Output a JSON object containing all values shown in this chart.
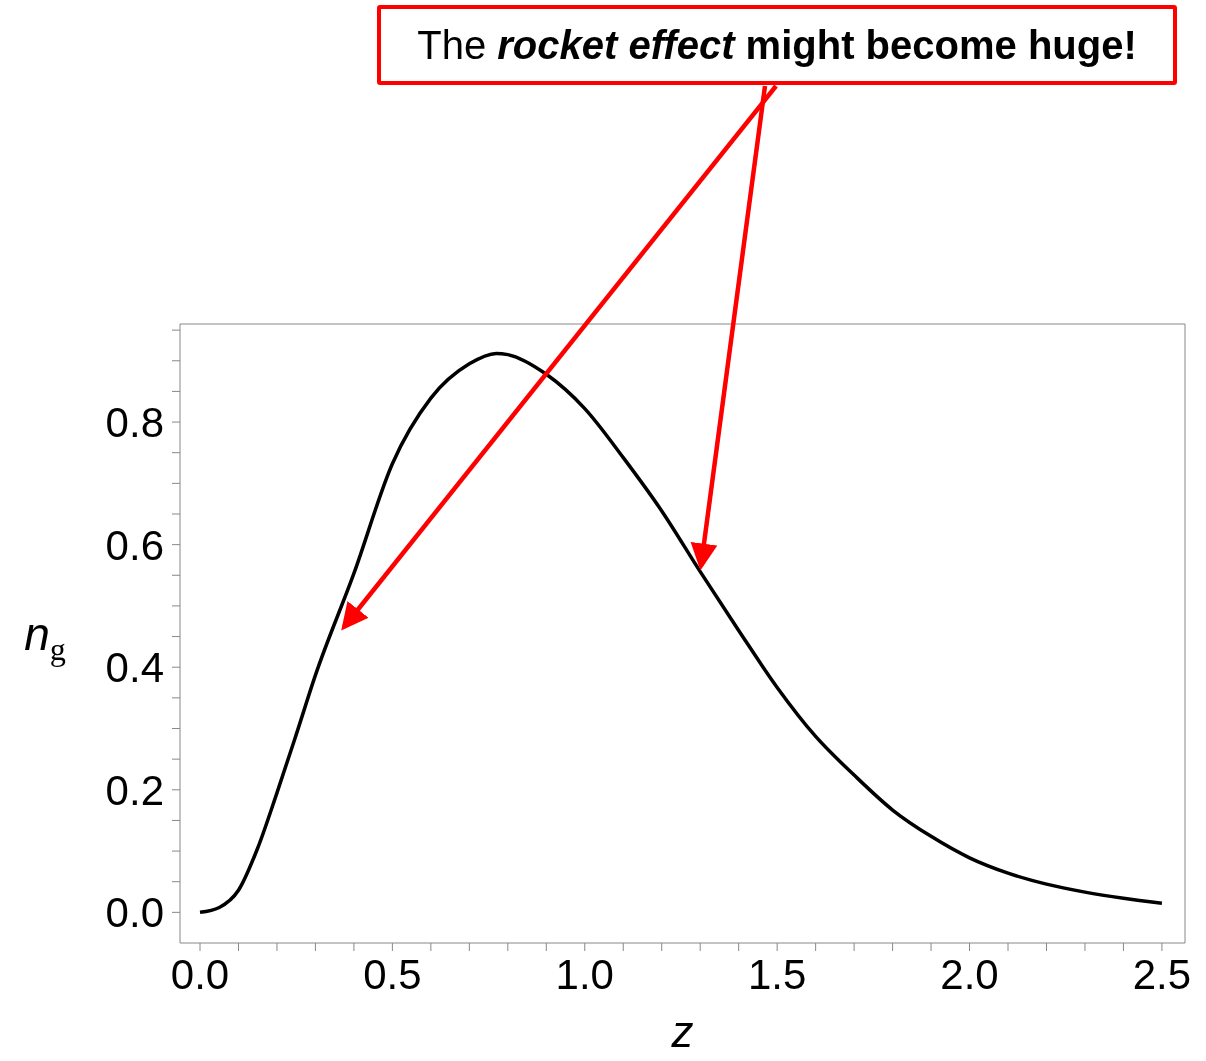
{
  "chart_data": {
    "type": "line",
    "xlabel": "z",
    "ylabel": "n$_{g}$",
    "annotations": [
      "The rocket effect might become huge!"
    ],
    "x": [
      0,
      0.05,
      0.1,
      0.15,
      0.2,
      0.25,
      0.3,
      0.4,
      0.5,
      0.6,
      0.7,
      0.77,
      0.8,
      0.9,
      1.0,
      1.1,
      1.2,
      1.3,
      1.4,
      1.5,
      1.6,
      1.7,
      1.8,
      1.9,
      2.0,
      2.1,
      2.2,
      2.3,
      2.4,
      2.5
    ],
    "series": [
      {
        "color": "#000000",
        "values": [
          0,
          0.008,
          0.036,
          0.105,
          0.195,
          0.29,
          0.387,
          0.553,
          0.732,
          0.839,
          0.895,
          0.912,
          0.91,
          0.878,
          0.822,
          0.742,
          0.655,
          0.556,
          0.46,
          0.367,
          0.287,
          0.224,
          0.167,
          0.124,
          0.089,
          0.064,
          0.046,
          0.033,
          0.023,
          0.015
        ]
      }
    ],
    "xlim": [
      -0.052,
      2.56
    ],
    "ylim": [
      -0.05,
      0.96
    ],
    "xticks": [
      {
        "value": 0,
        "label": "0.0"
      },
      {
        "value": 0.1,
        "label": null
      },
      {
        "value": 0.2,
        "label": null
      },
      {
        "value": 0.3,
        "label": null
      },
      {
        "value": 0.4,
        "label": null
      },
      {
        "value": 0.5,
        "label": "0.5"
      },
      {
        "value": 0.6,
        "label": null
      },
      {
        "value": 0.7,
        "label": null
      },
      {
        "value": 0.8,
        "label": null
      },
      {
        "value": 0.9,
        "label": null
      },
      {
        "value": 1,
        "label": "1.0"
      },
      {
        "value": 1.1,
        "label": null
      },
      {
        "value": 1.2,
        "label": null
      },
      {
        "value": 1.3,
        "label": null
      },
      {
        "value": 1.4,
        "label": null
      },
      1.5,
      {
        "value": 1.6,
        "label": null
      },
      {
        "value": 1.7,
        "label": null
      },
      {
        "value": 1.8,
        "label": null
      },
      {
        "value": 1.9,
        "label": null
      },
      {
        "value": 2,
        "label": "2.0"
      },
      {
        "value": 2.1,
        "label": null
      },
      {
        "value": 2.2,
        "label": null
      },
      {
        "value": 2.3,
        "label": null
      },
      {
        "value": 2.4,
        "label": null
      },
      2.5
    ],
    "yticks": [
      {
        "value": 0,
        "label": "0.0"
      },
      {
        "value": 0.05,
        "label": null
      },
      {
        "value": 0.1,
        "label": null
      },
      {
        "value": 0.15,
        "label": null
      },
      0.2,
      {
        "value": 0.25,
        "label": null
      },
      {
        "value": 0.3,
        "label": null
      },
      {
        "value": 0.35,
        "label": null
      },
      0.4,
      {
        "value": 0.45,
        "label": null
      },
      {
        "value": 0.5,
        "label": null
      },
      {
        "value": 0.55,
        "label": null
      },
      0.6,
      {
        "value": 0.65,
        "label": null
      },
      {
        "value": 0.7,
        "label": null
      },
      {
        "value": 0.75,
        "label": null
      },
      0.8,
      {
        "value": 0.85,
        "label": null
      },
      {
        "value": 0.9,
        "label": null
      },
      {
        "value": 0.95,
        "label": null
      }
    ],
    "marker": "none",
    "line_style": "solid"
  }
}
